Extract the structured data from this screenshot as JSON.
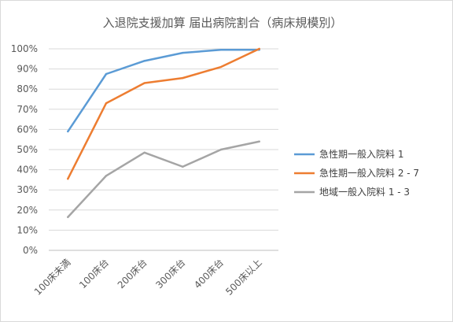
{
  "chart_data": {
    "type": "line",
    "title": "入退院支援加算 届出病院割合（病床規模別）",
    "categories": [
      "100床未満",
      "100床台",
      "200床台",
      "300床台",
      "400床台",
      "500床以上"
    ],
    "y_ticks": [
      "0%",
      "10%",
      "20%",
      "30%",
      "40%",
      "50%",
      "60%",
      "70%",
      "80%",
      "90%",
      "100%"
    ],
    "ylim": [
      0,
      100
    ],
    "grid": true,
    "legend_position": "right",
    "series": [
      {
        "name": "急性期一般入院料 1",
        "color": "#5b9bd5",
        "values": [
          59,
          87.5,
          94,
          98,
          99.5,
          99.5
        ]
      },
      {
        "name": "急性期一般入院料 2 - 7",
        "color": "#ed7d31",
        "values": [
          35.5,
          73,
          83,
          85.5,
          91,
          100
        ]
      },
      {
        "name": "地域一般入院料 1 - 3",
        "color": "#a5a5a5",
        "values": [
          16.5,
          37,
          48.5,
          41.5,
          50,
          54
        ]
      }
    ]
  }
}
